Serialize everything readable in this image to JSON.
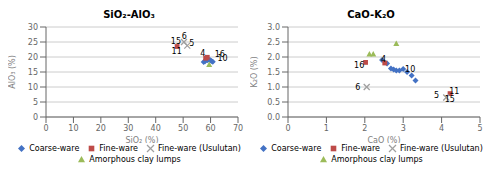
{
  "chart_data": [
    {
      "type": "scatter",
      "title": "SiO₂-AlO₃",
      "xlabel": "SiO₂ (%)",
      "ylabel": "AlO₃ (%)",
      "xlim": [
        0,
        70
      ],
      "ylim": [
        0,
        30
      ],
      "xticks": [
        0,
        10,
        20,
        30,
        40,
        50,
        60,
        70
      ],
      "yticks": [
        0,
        5,
        10,
        15,
        20,
        25,
        30
      ],
      "grid": "y",
      "legend": "bottom",
      "series": [
        {
          "name": "Coarse-ware",
          "color": "#4472C4",
          "marker": "diamond",
          "x": [
            57.5,
            58.0,
            58.8,
            59.3,
            59.8,
            60.3,
            60.8
          ],
          "values": [
            18.3,
            18.6,
            18.9,
            19.2,
            19.0,
            18.7,
            18.4
          ]
        },
        {
          "name": "Fine-ware",
          "color": "#BE4B48",
          "marker": "square",
          "x": [
            47.8,
            58.2,
            58.8
          ],
          "values": [
            23.5,
            19.6,
            19.9
          ]
        },
        {
          "name": "Fine-ware (Usulutan)",
          "color": "#A0A0A0",
          "marker": "x",
          "x": [
            50.3,
            51.5
          ],
          "values": [
            25.0,
            23.8
          ]
        },
        {
          "name": "Amorphous clay lumps",
          "color": "#9BBB59",
          "marker": "triangle",
          "x": [
            59.5
          ],
          "values": [
            17.5
          ]
        }
      ],
      "annotations": [
        {
          "text": "6",
          "x": 49.5,
          "y": 27.0
        },
        {
          "text": "15",
          "x": 45.5,
          "y": 25.2
        },
        {
          "text": "5",
          "x": 52.2,
          "y": 24.5
        },
        {
          "text": "11",
          "x": 45.8,
          "y": 22.0
        },
        {
          "text": "4",
          "x": 56.2,
          "y": 21.2
        },
        {
          "text": "16",
          "x": 61.5,
          "y": 21.0
        },
        {
          "text": "10",
          "x": 62.5,
          "y": 19.5
        }
      ]
    },
    {
      "type": "scatter",
      "title": "CaO-K₂O",
      "xlabel": "CaO (%)",
      "ylabel": "K₂O (%)",
      "xlim": [
        0,
        5
      ],
      "ylim": [
        0,
        3
      ],
      "xticks": [
        0,
        1,
        2,
        3,
        4,
        5
      ],
      "yticks": [
        {
          "value": 0,
          "label": "0.0"
        },
        0.5,
        {
          "value": 1,
          "label": "1.0"
        },
        1.5,
        {
          "value": 2,
          "label": "2.0"
        },
        2.5,
        {
          "value": 3,
          "label": "3.0"
        }
      ],
      "grid": "y",
      "legend": "bottom",
      "series": [
        {
          "name": "Coarse-ware",
          "color": "#4472C4",
          "marker": "diamond",
          "x": [
            2.45,
            2.58,
            2.68,
            2.75,
            2.82,
            2.9,
            3.0,
            3.1,
            3.22,
            3.32
          ],
          "values": [
            1.9,
            1.78,
            1.62,
            1.58,
            1.55,
            1.55,
            1.6,
            1.5,
            1.38,
            1.22
          ]
        },
        {
          "name": "Fine-ware",
          "color": "#BE4B48",
          "marker": "square",
          "x": [
            2.02,
            2.52,
            4.22
          ],
          "values": [
            1.82,
            1.8,
            0.78
          ]
        },
        {
          "name": "Fine-ware (Usulutan)",
          "color": "#A0A0A0",
          "marker": "x",
          "x": [
            2.05,
            4.12
          ],
          "values": [
            1.0,
            0.65
          ]
        },
        {
          "name": "Amorphous clay lumps",
          "color": "#9BBB59",
          "marker": "triangle",
          "x": [
            2.12,
            2.22,
            2.82
          ],
          "values": [
            2.1,
            2.1,
            2.45
          ]
        }
      ],
      "annotations": [
        {
          "text": "16",
          "x": 1.72,
          "y": 1.72
        },
        {
          "text": "4",
          "x": 2.42,
          "y": 1.93
        },
        {
          "text": "10",
          "x": 3.05,
          "y": 1.6
        },
        {
          "text": "6",
          "x": 1.75,
          "y": 0.97
        },
        {
          "text": "5",
          "x": 3.8,
          "y": 0.72
        },
        {
          "text": "11",
          "x": 4.2,
          "y": 0.85
        },
        {
          "text": "15",
          "x": 4.08,
          "y": 0.57
        }
      ]
    }
  ]
}
